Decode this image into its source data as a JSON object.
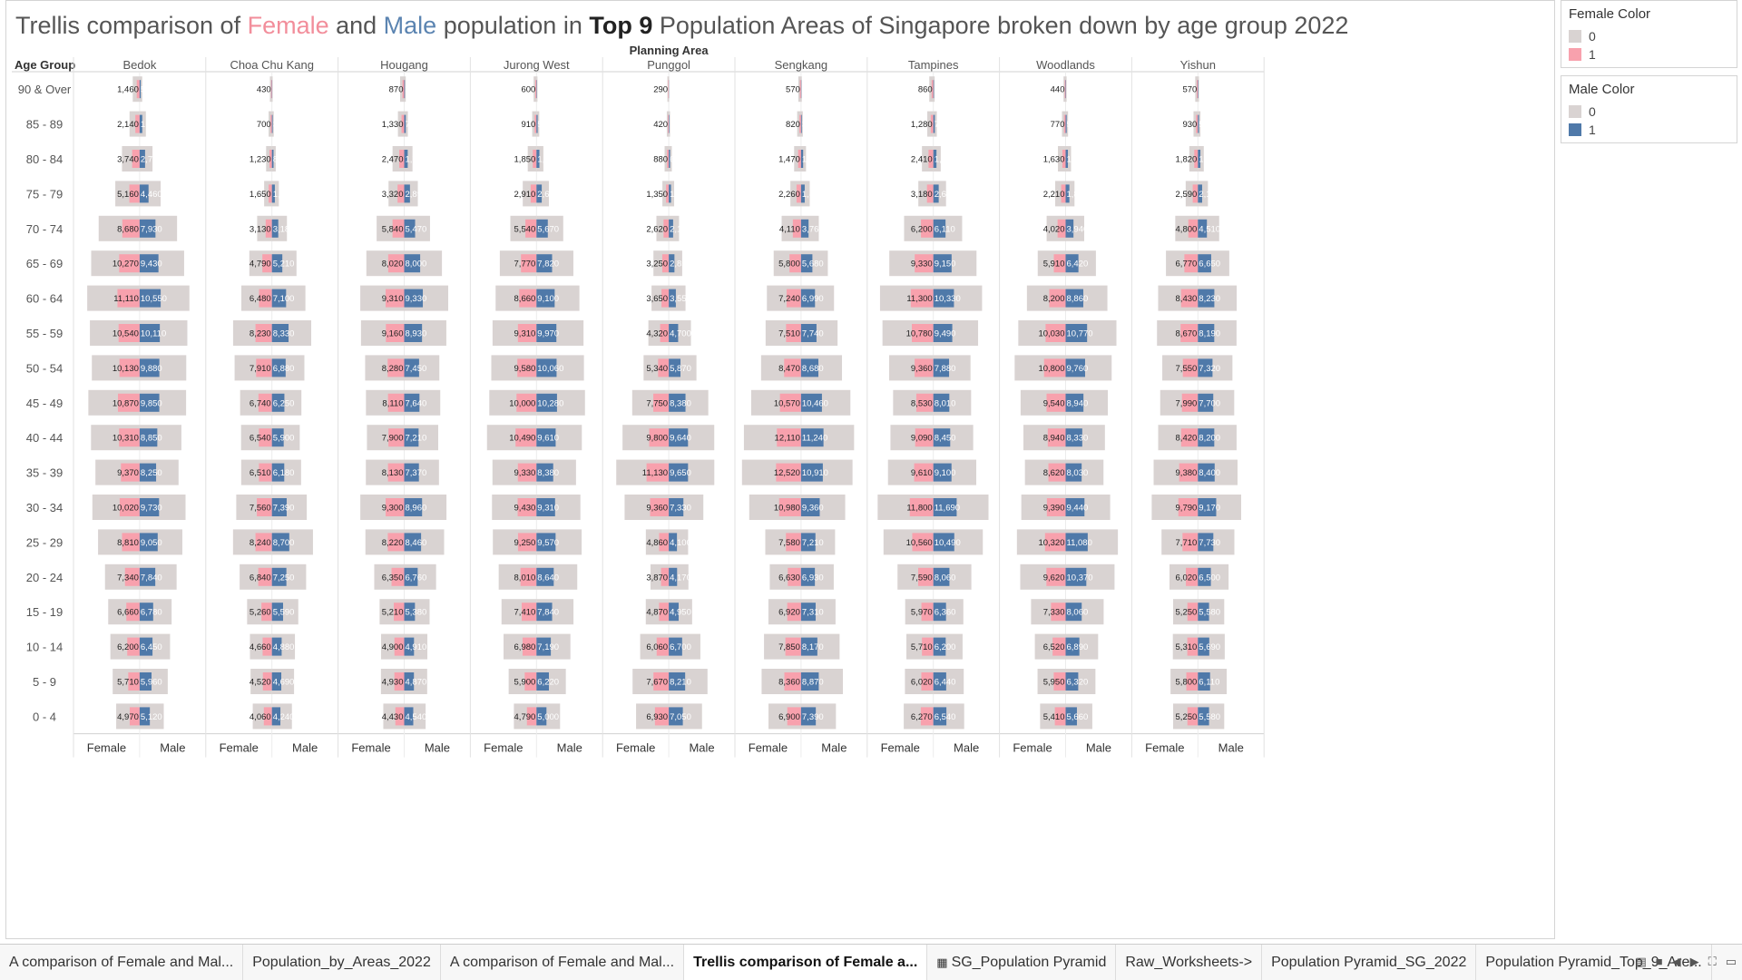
{
  "title": {
    "pre": "Trellis comparison of ",
    "female": "Female",
    "and": " and ",
    "male": "Male",
    "mid": " population in ",
    "top": "Top 9",
    "post": " Population Areas of Singapore broken down by age group 2022"
  },
  "legends": {
    "female": {
      "title": "Female Color",
      "items": [
        "0",
        "1"
      ],
      "colors": [
        "#d9d3d2",
        "#f8a1ad"
      ]
    },
    "male": {
      "title": "Male Color",
      "items": [
        "0",
        "1"
      ],
      "colors": [
        "#d9d3d2",
        "#4f79a9"
      ]
    }
  },
  "tabs": [
    "A comparison of Female and Mal...",
    "Population_by_Areas_2022",
    "A comparison of Female and Mal...",
    "Trellis comparison of Female a...",
    "SG_Population Pyramid",
    "Raw_Worksheets->",
    "Population Pyramid_SG_2022",
    "Population Pyramid_Top_9_Are..."
  ],
  "active_tab": 3,
  "chart_data": {
    "type": "bar",
    "subtype": "trellis population pyramid",
    "column_header": "Planning Area",
    "row_header": "Age Group",
    "sex_labels": [
      "Female",
      "Male"
    ],
    "colors": {
      "background_bar": "#d9d3d2",
      "female": "#f8a1ad",
      "male": "#4f79a9"
    },
    "areas": [
      "Bedok",
      "Choa Chu Kang",
      "Hougang",
      "Jurong West",
      "Punggol",
      "Sengkang",
      "Tampines",
      "Woodlands",
      "Yishun"
    ],
    "age_groups": [
      "90 & Over",
      "85 - 89",
      "80 - 84",
      "75 - 79",
      "70 - 74",
      "65 - 69",
      "60 - 64",
      "55 - 59",
      "50 - 54",
      "45 - 49",
      "40 - 44",
      "35 - 39",
      "30 - 34",
      "25 - 29",
      "20 - 24",
      "15 - 19",
      "10 - 14",
      "5 - 9",
      "0 - 4"
    ],
    "female": {
      "Bedok": [
        1460,
        2140,
        3740,
        5160,
        8680,
        10270,
        11110,
        10540,
        10130,
        10870,
        10310,
        9370,
        10020,
        8810,
        7340,
        6660,
        6200,
        5710,
        4970
      ],
      "Choa Chu Kang": [
        430,
        700,
        1230,
        1650,
        3130,
        4790,
        6480,
        8230,
        7910,
        6740,
        6540,
        6510,
        7560,
        8240,
        6840,
        5260,
        4660,
        4520,
        4060
      ],
      "Hougang": [
        870,
        1330,
        2470,
        3320,
        5840,
        8020,
        9310,
        9160,
        8280,
        8110,
        7900,
        8130,
        9300,
        8220,
        6350,
        5210,
        4900,
        4930,
        4430
      ],
      "Jurong West": [
        600,
        910,
        1850,
        2910,
        5540,
        7770,
        8660,
        9310,
        9580,
        10000,
        10490,
        9330,
        9430,
        9250,
        8010,
        7410,
        6980,
        5900,
        4790
      ],
      "Punggol": [
        290,
        420,
        880,
        1350,
        2620,
        3250,
        3650,
        4320,
        5340,
        7750,
        9800,
        11130,
        9360,
        4860,
        3870,
        4870,
        6060,
        7670,
        6930
      ],
      "Sengkang": [
        570,
        820,
        1470,
        2260,
        4110,
        5800,
        7240,
        7510,
        8470,
        10570,
        12110,
        12520,
        10980,
        7580,
        6630,
        6920,
        7850,
        8360,
        6900
      ],
      "Tampines": [
        860,
        1280,
        2410,
        3180,
        6200,
        9330,
        11300,
        10780,
        9360,
        8530,
        9090,
        9610,
        11800,
        10560,
        7590,
        5970,
        5710,
        6020,
        6270
      ],
      "Woodlands": [
        440,
        770,
        1630,
        2210,
        4020,
        5910,
        8200,
        10030,
        10800,
        9540,
        8940,
        8620,
        9390,
        10320,
        9620,
        7330,
        6520,
        5950,
        5410
      ],
      "Yishun": [
        570,
        930,
        1820,
        2590,
        4800,
        6770,
        8430,
        8670,
        7550,
        7990,
        8420,
        9380,
        9790,
        7710,
        6020,
        5250,
        5310,
        5800,
        5250
      ]
    },
    "male": {
      "Bedok": [
        550,
        1320,
        2730,
        4460,
        7930,
        9430,
        10550,
        10110,
        9880,
        9850,
        8850,
        8250,
        9730,
        9050,
        7840,
        6780,
        6450,
        5960,
        5120
      ],
      "Choa Chu Kang": [
        160,
        390,
        810,
        1470,
        3180,
        5210,
        7100,
        8330,
        6880,
        6250,
        5900,
        6180,
        7390,
        8700,
        7250,
        5590,
        4880,
        4690,
        4240
      ],
      "Hougang": [
        330,
        780,
        1760,
        2890,
        5470,
        8000,
        9330,
        8930,
        7450,
        7640,
        7210,
        7370,
        8960,
        8460,
        6760,
        5380,
        4910,
        4870,
        4540
      ],
      "Jurong West": [
        210,
        580,
        1460,
        2630,
        5670,
        7820,
        9100,
        9970,
        10060,
        10280,
        9610,
        8380,
        9310,
        9570,
        8640,
        7840,
        7190,
        6220,
        5000
      ],
      "Punggol": [
        90,
        270,
        650,
        1140,
        2180,
        2850,
        3550,
        4700,
        5870,
        8380,
        9640,
        9650,
        7330,
        4100,
        4170,
        4950,
        6700,
        8210,
        7050
      ],
      "Sengkang": [
        160,
        370,
        1050,
        1840,
        3760,
        5680,
        6990,
        7740,
        8680,
        10460,
        11240,
        10910,
        9360,
        7210,
        6930,
        7310,
        8170,
        8870,
        7390
      ],
      "Tampines": [
        280,
        740,
        1570,
        2690,
        6110,
        9150,
        10330,
        9490,
        7880,
        8010,
        8450,
        9100,
        11690,
        10490,
        8060,
        6360,
        6200,
        6440,
        6540
      ],
      "Woodlands": [
        210,
        520,
        1150,
        1880,
        3940,
        6420,
        8860,
        10770,
        9760,
        8940,
        8330,
        8030,
        9440,
        11080,
        10370,
        8060,
        6890,
        6320,
        5660
      ],
      "Yishun": [
        230,
        540,
        1250,
        2120,
        4510,
        6650,
        8230,
        8190,
        7320,
        7700,
        8200,
        8400,
        9170,
        7730,
        6500,
        5580,
        5690,
        6110,
        5580
      ]
    }
  }
}
